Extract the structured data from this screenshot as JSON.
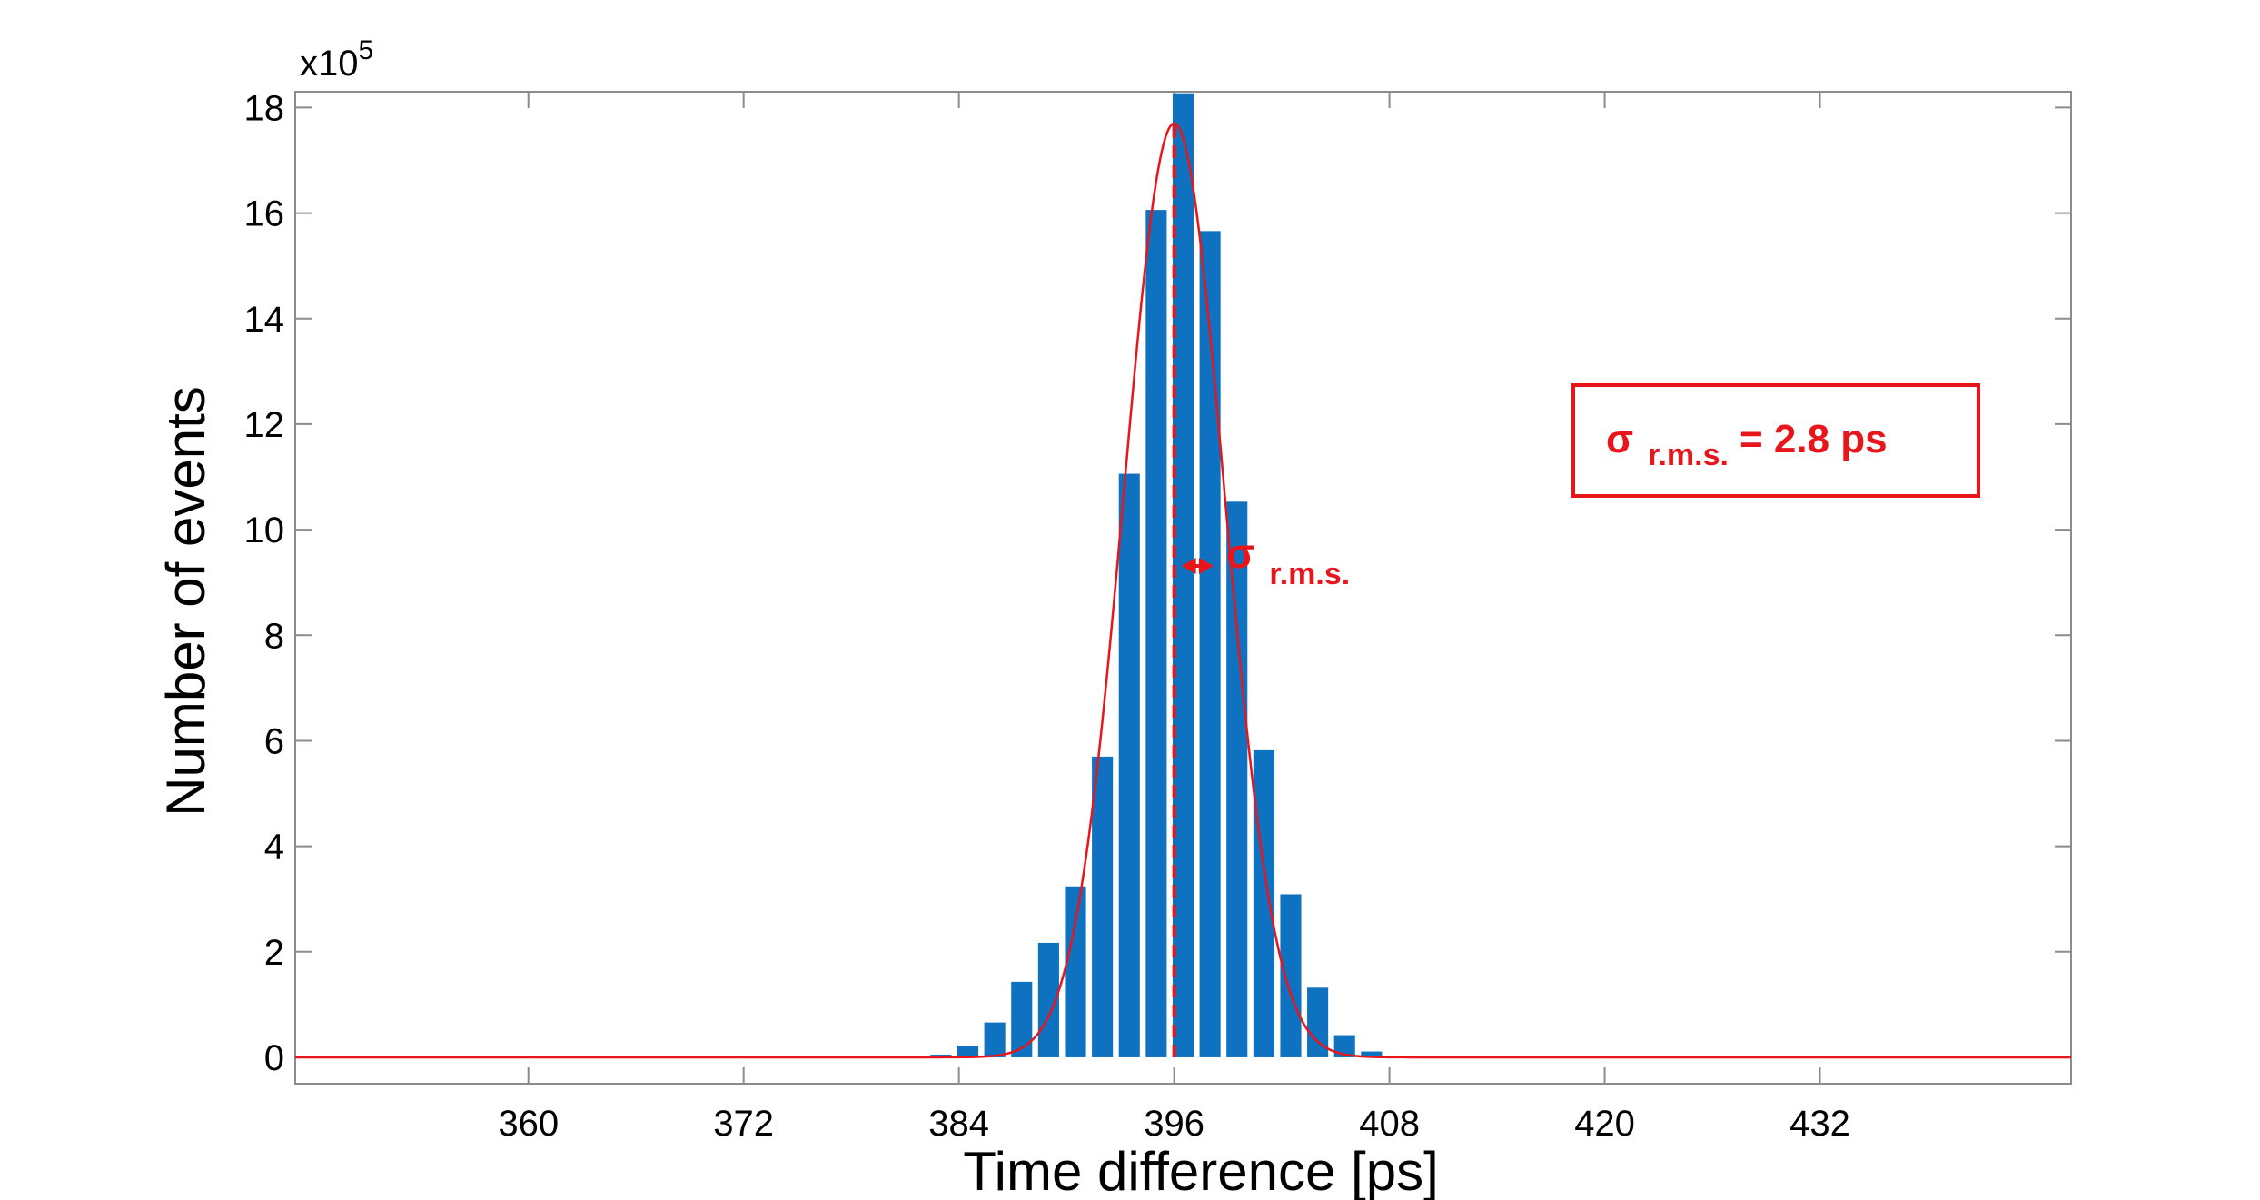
{
  "chart_data": {
    "type": "bar",
    "xlabel": "Time difference [ps]",
    "ylabel": "Number of events",
    "y_exponent_label": "x10",
    "y_exponent_power": "5",
    "xlim": [
      347,
      446
    ],
    "ylim": [
      -0.5,
      18.3
    ],
    "x_ticks": [
      360,
      372,
      384,
      396,
      408,
      420,
      432
    ],
    "y_ticks": [
      0,
      2,
      4,
      6,
      8,
      10,
      12,
      14,
      16,
      18
    ],
    "grid": false,
    "bar_color": "#0e72c1",
    "fit_color": "#e8151b",
    "bin_width": 1.5,
    "bars": {
      "x": [
        383,
        384.5,
        386,
        387.5,
        389,
        390.5,
        392,
        393.5,
        395,
        396.5,
        398,
        399.5,
        401,
        402.5,
        404,
        405.5,
        407
      ],
      "values": [
        0.05,
        0.22,
        0.66,
        1.43,
        2.17,
        3.24,
        5.7,
        11.06,
        16.06,
        18.27,
        15.66,
        10.53,
        5.82,
        3.09,
        1.32,
        0.42,
        0.11
      ]
    },
    "fit": {
      "name": "Gaussian fit",
      "mean": 396,
      "sigma": 2.8,
      "amplitude": 17.7
    },
    "mean_marker_x": 396,
    "annotations": {
      "sigma_label": "σ",
      "sigma_subscript": "r.m.s.",
      "box_label_prefix": "σ",
      "box_label_subscript": "r.m.s.",
      "box_label_suffix": "= 2.8 ps"
    }
  }
}
